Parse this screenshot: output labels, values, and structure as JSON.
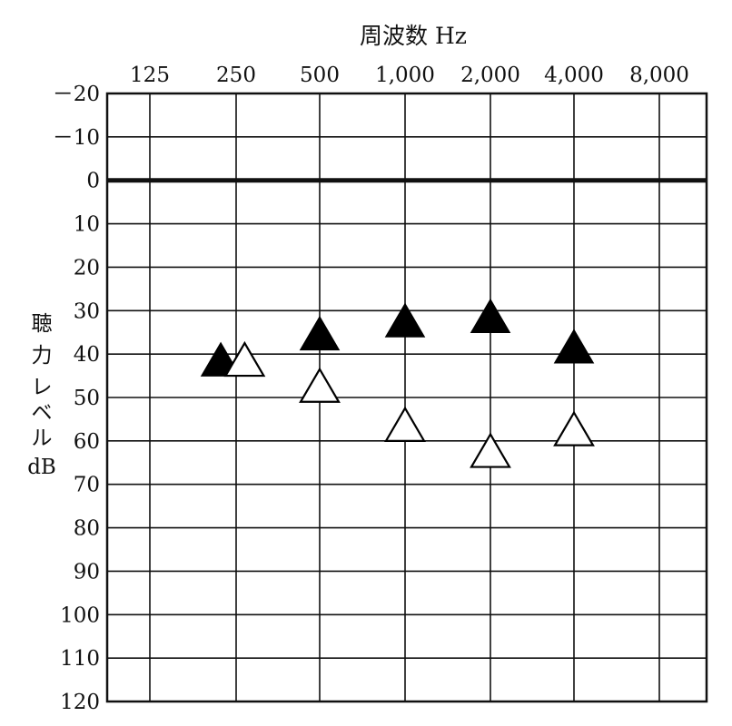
{
  "chart_data": {
    "type": "scatter",
    "title": "周波数 Hz",
    "ylabel_chars": [
      "聴",
      "力",
      "レ",
      "ベ",
      "ル",
      "dB"
    ],
    "x_categories": [
      "125",
      "250",
      "500",
      "1,000",
      "2,000",
      "4,000",
      "8,000"
    ],
    "y_ticks": [
      "－20",
      "－10",
      "0",
      "10",
      "20",
      "30",
      "40",
      "50",
      "60",
      "70",
      "80",
      "90",
      "100",
      "110",
      "120"
    ],
    "y_tick_values": [
      -20,
      -10,
      0,
      10,
      20,
      30,
      40,
      50,
      60,
      70,
      80,
      90,
      100,
      110,
      120
    ],
    "ylim": [
      -20,
      120
    ],
    "y_inverted": true,
    "reference_line": 0,
    "grid": true,
    "series": [
      {
        "marker": "filled-triangle",
        "color": "#000000",
        "points": [
          {
            "x": "250",
            "x_offset": -0.18,
            "y": 45
          },
          {
            "x": "500",
            "y": 39
          },
          {
            "x": "1,000",
            "y": 36
          },
          {
            "x": "2,000",
            "y": 35
          },
          {
            "x": "4,000",
            "y": 42
          }
        ]
      },
      {
        "marker": "open-triangle",
        "color": "#ffffff",
        "points": [
          {
            "x": "250",
            "x_offset": 0.1,
            "y": 45
          },
          {
            "x": "500",
            "y": 51
          },
          {
            "x": "1,000",
            "y": 60
          },
          {
            "x": "2,000",
            "y": 66
          },
          {
            "x": "4,000",
            "y": 61
          }
        ]
      }
    ]
  }
}
